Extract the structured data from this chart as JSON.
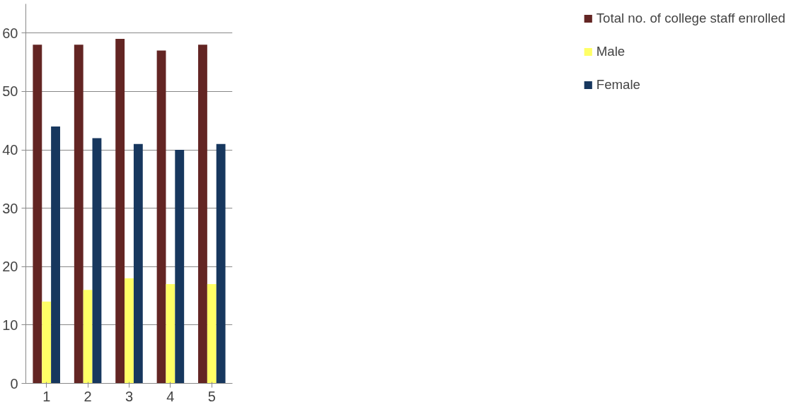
{
  "chart_data": {
    "type": "bar",
    "categories": [
      "1",
      "2",
      "3",
      "4",
      "5"
    ],
    "series": [
      {
        "name": "Total no. of college staff enrolled",
        "color": "#632523",
        "values": [
          58,
          58,
          59,
          57,
          58
        ]
      },
      {
        "name": "Male",
        "color": "#ffff66",
        "values": [
          14,
          16,
          18,
          17,
          17
        ]
      },
      {
        "name": "Female",
        "color": "#17375e",
        "values": [
          44,
          42,
          41,
          40,
          41
        ]
      }
    ],
    "ylim": [
      0,
      65
    ],
    "yticks": [
      0,
      10,
      20,
      30,
      40,
      50,
      60
    ],
    "grid": "y",
    "legend": "right"
  }
}
